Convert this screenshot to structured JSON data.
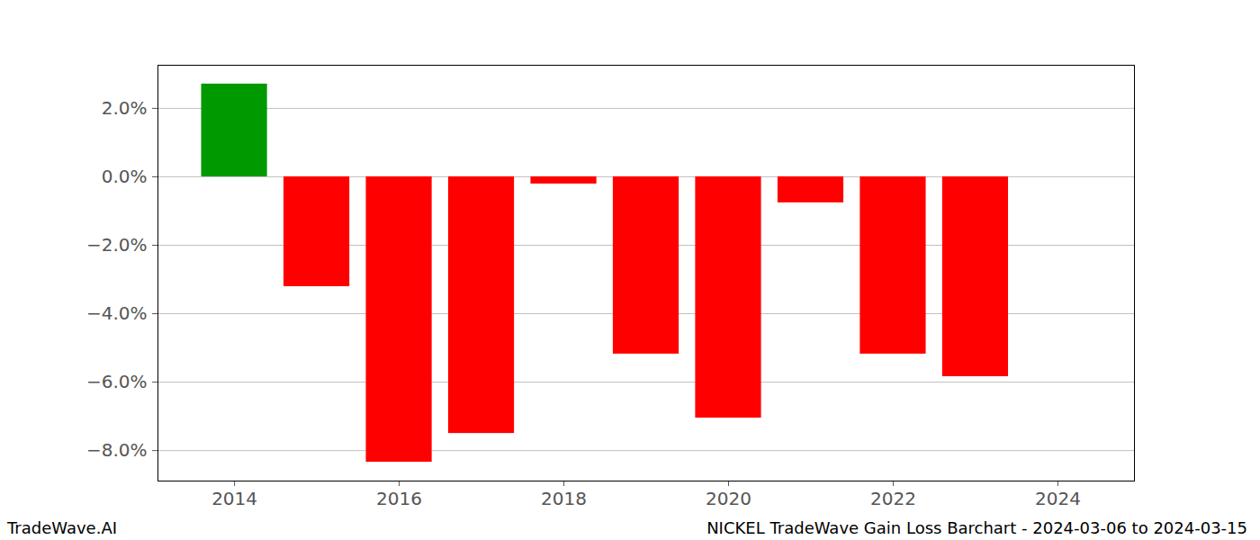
{
  "chart_data": {
    "type": "bar",
    "title": "NICKEL TradeWave Gain Loss Barchart - 2024-03-06 to 2024-03-15",
    "source": "TradeWave.AI",
    "x": [
      2014,
      2015,
      2016,
      2017,
      2018,
      2019,
      2020,
      2021,
      2022,
      2023
    ],
    "values": [
      2.71,
      -3.21,
      -8.34,
      -7.5,
      -0.21,
      -5.18,
      -7.05,
      -0.76,
      -5.18,
      -5.84
    ],
    "colors": [
      "#009900",
      "#ff0000",
      "#ff0000",
      "#ff0000",
      "#ff0000",
      "#ff0000",
      "#ff0000",
      "#ff0000",
      "#ff0000",
      "#ff0000"
    ],
    "xlim": [
      2013.07,
      2024.93
    ],
    "xticks": [
      2014,
      2016,
      2018,
      2020,
      2022,
      2024
    ],
    "ylim": [
      -8.89,
      3.26
    ],
    "yticks": [
      {
        "value": -8,
        "label": "−8.0%"
      },
      {
        "value": -6,
        "label": "−6.0%"
      },
      {
        "value": -4,
        "label": "−4.0%"
      },
      {
        "value": -2,
        "label": "−2.0%"
      },
      {
        "value": 0,
        "label": "0.0%"
      },
      {
        "value": 2,
        "label": "2.0%"
      }
    ],
    "grid": true
  }
}
